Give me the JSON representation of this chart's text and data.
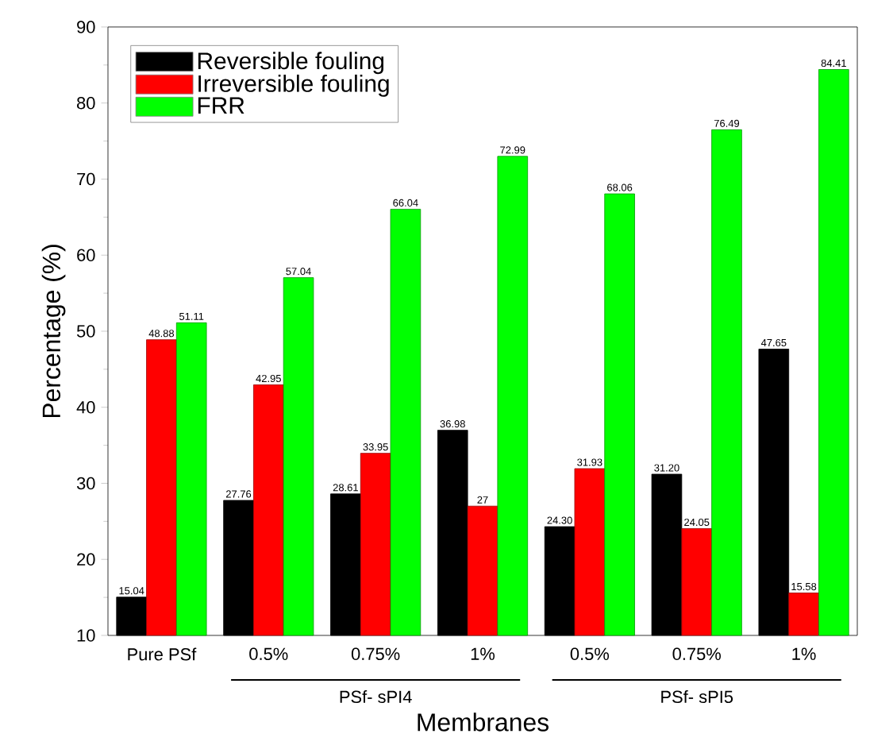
{
  "chart_data": {
    "type": "bar",
    "xlabel": "Membranes",
    "ylabel": "Percentage (%)",
    "categories": [
      "Pure PSf",
      "0.5%",
      "0.75%",
      "1%",
      "0.5%",
      "0.75%",
      "1%"
    ],
    "series": [
      {
        "name": "Reversible fouling",
        "color": "#000000",
        "values": [
          15.04,
          27.76,
          28.61,
          36.98,
          24.3,
          31.2,
          47.65
        ],
        "value_labels": [
          "15.04",
          "27.76",
          "28.61",
          "36.98",
          "24.30",
          "31.20",
          "47.65"
        ]
      },
      {
        "name": "Irreversible fouling",
        "color": "#ff0000",
        "values": [
          48.88,
          42.95,
          33.95,
          27,
          31.93,
          24.05,
          15.58
        ],
        "value_labels": [
          "48.88",
          "42.95",
          "33.95",
          "27",
          "31.93",
          "24.05",
          "15.58"
        ]
      },
      {
        "name": "FRR",
        "color": "#00ff00",
        "values": [
          51.11,
          57.04,
          66.04,
          72.99,
          68.06,
          76.49,
          84.41
        ],
        "value_labels": [
          "51.11",
          "57.04",
          "66.04",
          "72.99",
          "68.06",
          "76.49",
          "84.41"
        ]
      }
    ],
    "ylim": [
      10,
      90
    ],
    "yticks": [
      10,
      20,
      30,
      40,
      50,
      60,
      70,
      80,
      90
    ],
    "legend": "top left",
    "annotations": [
      "PSf- sPI4",
      "PSf- sPI5"
    ]
  }
}
